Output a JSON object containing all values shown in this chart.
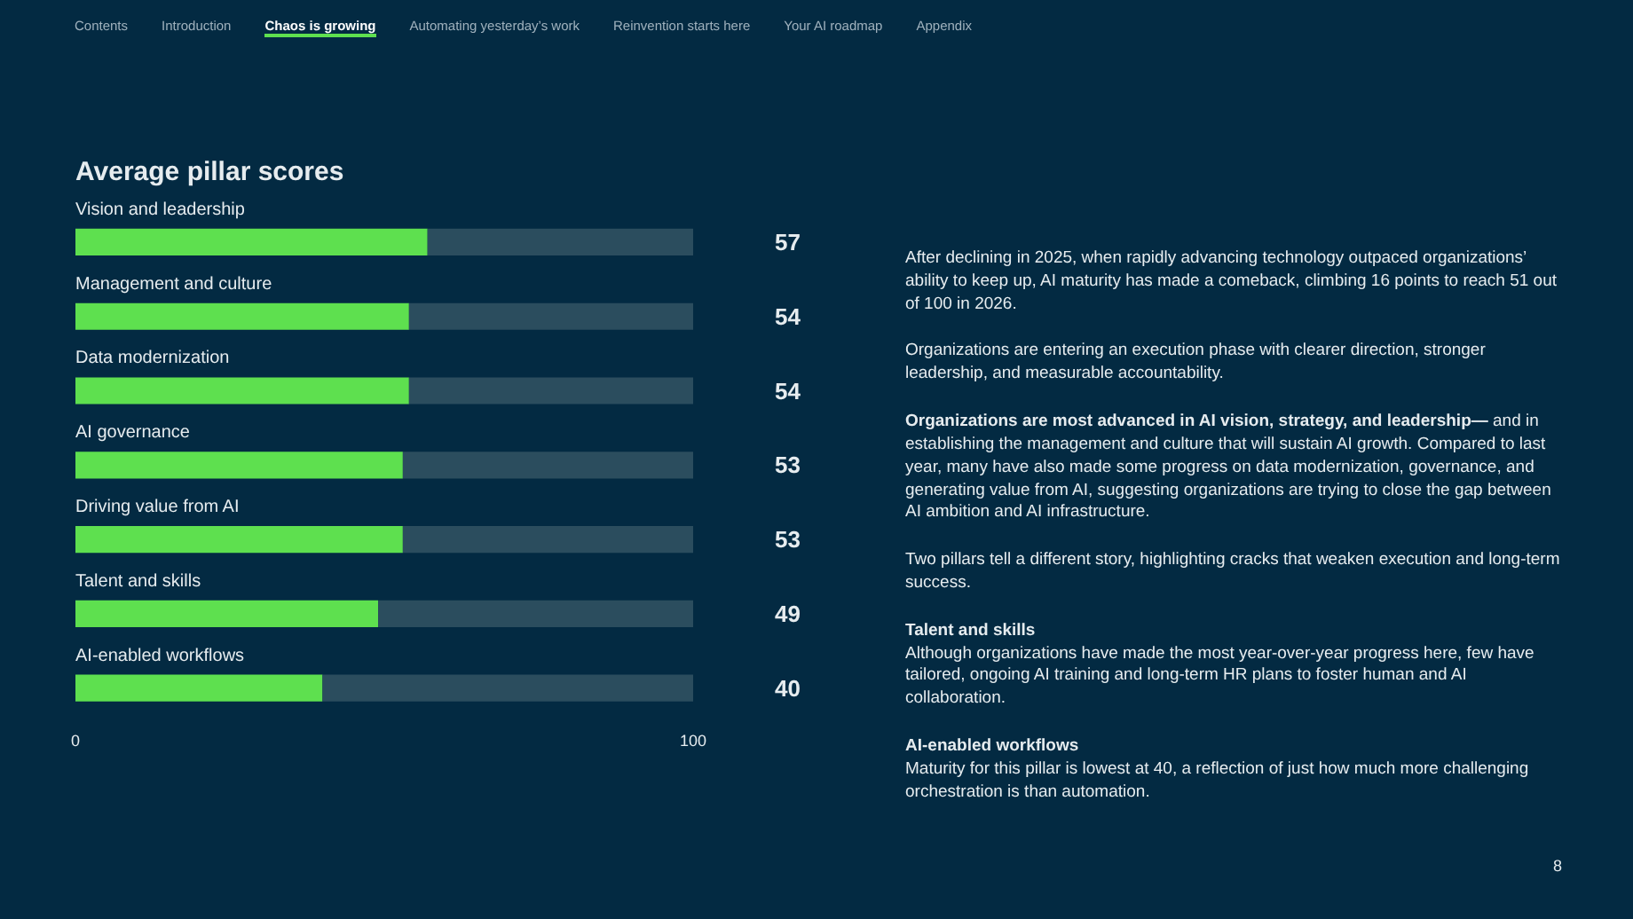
{
  "chart_data": {
    "type": "bar",
    "orientation": "horizontal",
    "stacked": true,
    "title": "Average pillar scores",
    "categories": [
      "Vision and leadership",
      "Management and culture",
      "Data modernization",
      "AI governance",
      "Driving value from AI",
      "Talent and skills",
      "AI-enabled workflows"
    ],
    "series": [
      {
        "color": "#5ee04f",
        "values": [
          57,
          54,
          54,
          53,
          53,
          49,
          40
        ],
        "value_labels": [
          "57",
          "54",
          "54",
          "53",
          "53",
          "49",
          "40"
        ]
      },
      {
        "color": "#2b4d5e",
        "values": [
          43,
          46,
          46,
          47,
          47,
          51,
          60
        ]
      }
    ],
    "xlim": [
      0,
      100
    ],
    "xticks": [
      0,
      100
    ],
    "grid": false,
    "annotations": [
      "Contents",
      "Introduction",
      "Chaos is growing",
      "Automating yesterday’s work",
      "Reinvention starts here",
      "Your AI roadmap",
      "Appendix",
      "After declining in 2025, when rapidly advancing technology outpaced organizations’ ability to keep up, AI maturity has made a comeback, climbing 16 points to reach 51 out of 100 in 2026.",
      "Organizations are entering an execution phase with clearer direction, stronger leadership, and measurable accountability.",
      "Organizations are most advanced in AI vision, strategy, and leadership—",
      "and in establishing the management and culture that will sustain AI growth. Compared to last year, many have also made some progress on data modernization, governance, and generating value from AI, suggesting organizations are trying to close the gap between AI ambition and AI infrastructure.",
      "Two pillars tell a different story, highlighting cracks that weaken execution and long-term success.",
      "Talent and skills",
      "Although organizations have made the most year-over-year progress here, few have tailored, ongoing AI training and long-term HR plans to foster human and AI collaboration.",
      "AI-enabled workflows",
      "Maturity for this pillar is lowest at 40, a reflection of just how much more challenging orchestration is than automation.",
      "8"
    ]
  }
}
